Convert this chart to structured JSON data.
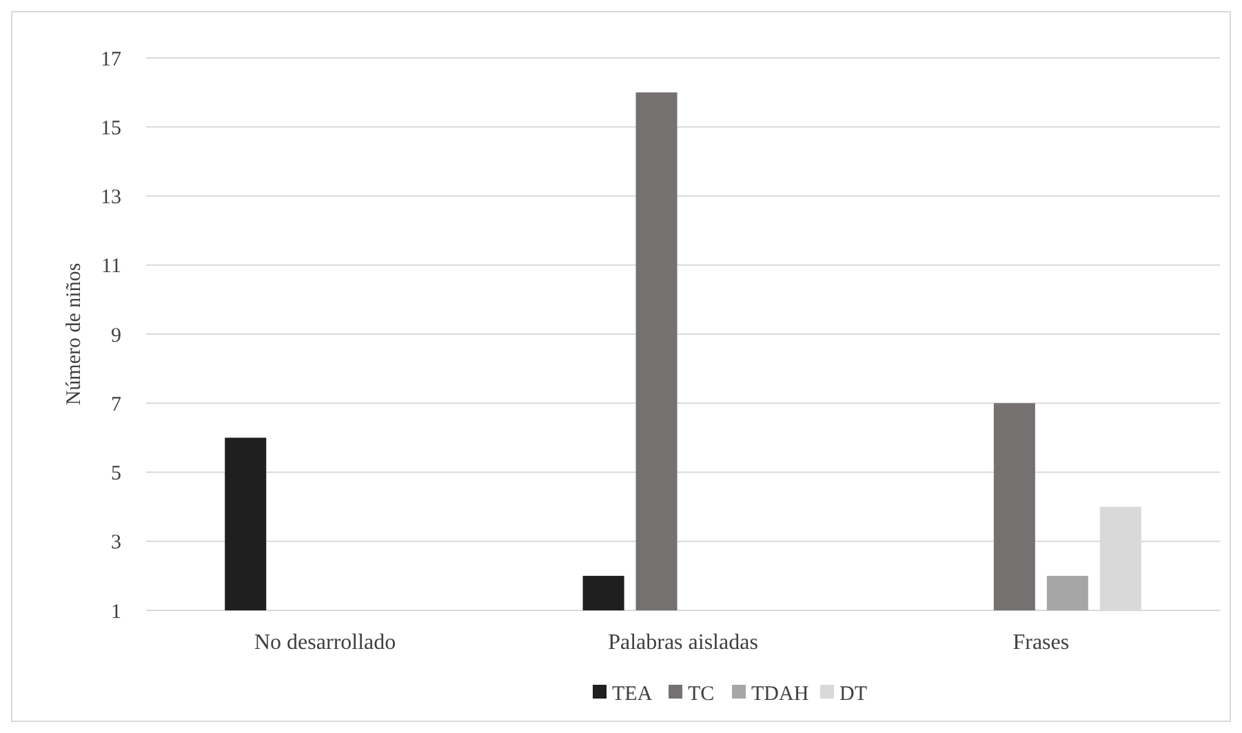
{
  "chart_data": {
    "type": "bar",
    "ylabel": "Número de niños",
    "categories": [
      "No desarrollado",
      "Palabras aisladas",
      "Frases"
    ],
    "series": [
      {
        "name": "TEA",
        "color": "#1f1f1f",
        "values": [
          6,
          2,
          null
        ]
      },
      {
        "name": "TC",
        "color": "#767171",
        "values": [
          null,
          16,
          7
        ]
      },
      {
        "name": "TDAH",
        "color": "#a6a6a6",
        "values": [
          null,
          null,
          2
        ]
      },
      {
        "name": "DT",
        "color": "#d9d9d9",
        "values": [
          null,
          null,
          4
        ]
      }
    ],
    "ylim": [
      1,
      17
    ],
    "yticks": [
      1,
      3,
      5,
      7,
      9,
      11,
      13,
      15,
      17
    ],
    "grid": "y",
    "legend": "bottom"
  }
}
